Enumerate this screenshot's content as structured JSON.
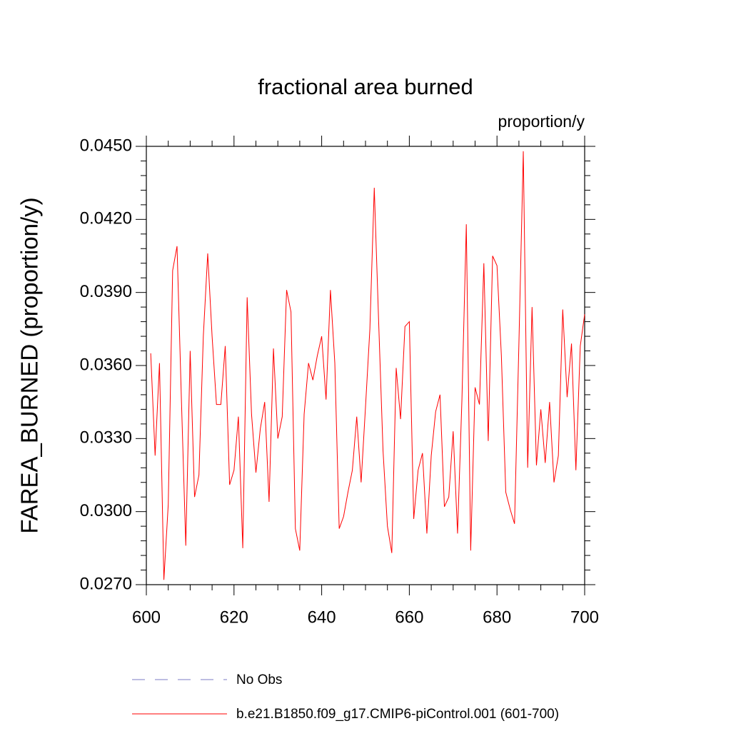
{
  "chart_data": {
    "type": "line",
    "title": "fractional area burned",
    "subtitle": "proportion/y",
    "ylabel": "FAREA_BURNED  (proportion/y)",
    "x": [
      601,
      602,
      603,
      604,
      605,
      606,
      607,
      608,
      609,
      610,
      611,
      612,
      613,
      614,
      615,
      616,
      617,
      618,
      619,
      620,
      621,
      622,
      623,
      624,
      625,
      626,
      627,
      628,
      629,
      630,
      631,
      632,
      633,
      634,
      635,
      636,
      637,
      638,
      639,
      640,
      641,
      642,
      643,
      644,
      645,
      646,
      647,
      648,
      649,
      650,
      651,
      652,
      653,
      654,
      655,
      656,
      657,
      658,
      659,
      660,
      661,
      662,
      663,
      664,
      665,
      666,
      667,
      668,
      669,
      670,
      671,
      672,
      673,
      674,
      675,
      676,
      677,
      678,
      679,
      680,
      681,
      682,
      683,
      684,
      685,
      686,
      687,
      688,
      689,
      690,
      691,
      692,
      693,
      694,
      695,
      696,
      697,
      698,
      699,
      700
    ],
    "series": [
      {
        "name": "No Obs",
        "color": "#7b7bc4",
        "dash": "dashed",
        "values": [
          null,
          null,
          null,
          null,
          null,
          null,
          null,
          null,
          null,
          null,
          null,
          null,
          null,
          null,
          null,
          null,
          null,
          null,
          null,
          null,
          null,
          null,
          null,
          null,
          null,
          null,
          null,
          null,
          null,
          null,
          null,
          null,
          null,
          null,
          null,
          null,
          null,
          null,
          null,
          null,
          null,
          null,
          null,
          null,
          null,
          null,
          null,
          null,
          null,
          null,
          null,
          null,
          null,
          null,
          null,
          null,
          null,
          null,
          null,
          null,
          null,
          null,
          null,
          null,
          null,
          null,
          null,
          null,
          null,
          null,
          null,
          null,
          null,
          null,
          null,
          null,
          null,
          null,
          null,
          null,
          null,
          null,
          null,
          null,
          null,
          null,
          null,
          null,
          null,
          null,
          null,
          null,
          null,
          null,
          null,
          null,
          null,
          null,
          null,
          null
        ]
      },
      {
        "name": "b.e21.B1850.f09_g17.CMIP6-piControl.001 (601-700)",
        "color": "#ff0000",
        "dash": "solid",
        "values": [
          0.0365,
          0.0323,
          0.0361,
          0.0272,
          0.0303,
          0.0399,
          0.0409,
          0.0346,
          0.0286,
          0.0366,
          0.0306,
          0.0315,
          0.0372,
          0.0406,
          0.0372,
          0.0344,
          0.0344,
          0.0368,
          0.0311,
          0.0317,
          0.0339,
          0.0285,
          0.0388,
          0.034,
          0.0316,
          0.0334,
          0.0345,
          0.0304,
          0.0367,
          0.033,
          0.0339,
          0.0391,
          0.0382,
          0.0293,
          0.0284,
          0.034,
          0.0361,
          0.0354,
          0.0364,
          0.0372,
          0.0346,
          0.0391,
          0.0361,
          0.0293,
          0.0298,
          0.0308,
          0.0317,
          0.0339,
          0.0312,
          0.0343,
          0.0375,
          0.0433,
          0.0378,
          0.0325,
          0.0294,
          0.0283,
          0.0359,
          0.0338,
          0.0376,
          0.0378,
          0.0297,
          0.0317,
          0.0324,
          0.0291,
          0.0323,
          0.0341,
          0.0348,
          0.0302,
          0.0306,
          0.0333,
          0.0291,
          0.0346,
          0.0418,
          0.0284,
          0.0351,
          0.0344,
          0.0402,
          0.0329,
          0.0405,
          0.0401,
          0.0364,
          0.0308,
          0.0301,
          0.0295,
          0.0369,
          0.0448,
          0.0318,
          0.0384,
          0.0319,
          0.0342,
          0.032,
          0.0345,
          0.0312,
          0.0323,
          0.0383,
          0.0347,
          0.0369,
          0.0317,
          0.0368,
          0.0381
        ]
      }
    ],
    "xlim": [
      600,
      700
    ],
    "xticks": [
      600,
      620,
      640,
      660,
      680,
      700
    ],
    "xminorticks": [
      605,
      610,
      615,
      625,
      630,
      635,
      645,
      650,
      655,
      665,
      670,
      675,
      685,
      690,
      695
    ],
    "ylim": [
      0.027,
      0.045
    ],
    "yticks": [
      {
        "value": 0.027,
        "label": "0.0270"
      },
      {
        "value": 0.03,
        "label": "0.0300"
      },
      {
        "value": 0.033,
        "label": "0.0330"
      },
      {
        "value": 0.036,
        "label": "0.0360"
      },
      {
        "value": 0.039,
        "label": "0.0390"
      },
      {
        "value": 0.042,
        "label": "0.0420"
      },
      {
        "value": 0.045,
        "label": "0.0450"
      }
    ],
    "yminorticks": [
      0.0276,
      0.0282,
      0.0288,
      0.0294,
      0.0306,
      0.0312,
      0.0318,
      0.0324,
      0.0336,
      0.0342,
      0.0348,
      0.0354,
      0.0366,
      0.0372,
      0.0378,
      0.0384,
      0.0396,
      0.0402,
      0.0408,
      0.0414,
      0.0426,
      0.0432,
      0.0438,
      0.0444
    ]
  }
}
